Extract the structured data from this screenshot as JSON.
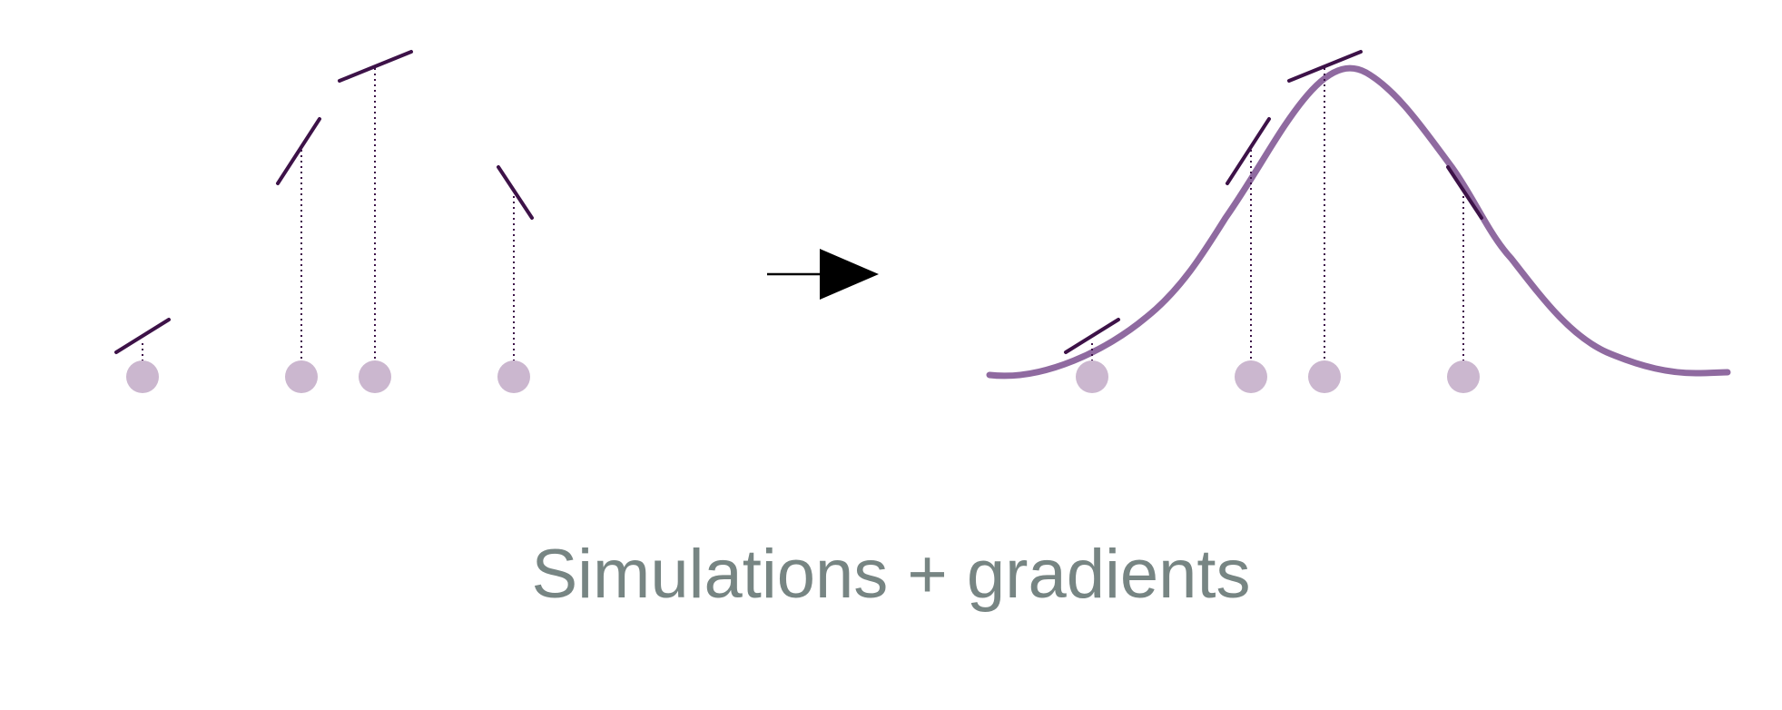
{
  "caption": "Simulations + gradients",
  "colors": {
    "background": "#ffffff",
    "sample_point": "#cbb7cf",
    "gradient_segment": "#3d1248",
    "drop_line": "#3d1248",
    "fitted_curve": "#8f6aa0",
    "arrow": "#000000",
    "caption_text": "#778583"
  },
  "icons": {
    "arrow": "arrow-right-icon"
  }
}
